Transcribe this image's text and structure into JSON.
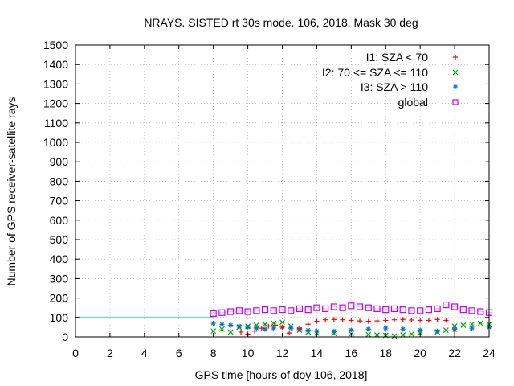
{
  "chart_data": {
    "type": "scatter",
    "title": "NRAYS. SISTED rt 30s mode. 106, 2018. Mask 30 deg",
    "xlabel": "GPS time [hours of doy 106, 2018]",
    "ylabel": "Number of GPS receiver-satellite rays",
    "xlim": [
      0,
      24
    ],
    "ylim": [
      0,
      1500
    ],
    "x_ticks": [
      0,
      2,
      4,
      6,
      8,
      10,
      12,
      14,
      16,
      18,
      20,
      22,
      24
    ],
    "y_ticks": [
      0,
      100,
      200,
      300,
      400,
      500,
      600,
      700,
      800,
      900,
      1000,
      1100,
      1200,
      1300,
      1400,
      1500
    ],
    "grid": true,
    "legend_position": "top-right",
    "reference_line": {
      "y": 100,
      "x_range": [
        0,
        8
      ],
      "color": "#00e0e0"
    },
    "series": [
      {
        "name": "I1: SZA < 70",
        "marker": "+",
        "color": "#ff0000",
        "x": [
          9.6,
          10.0,
          10.4,
          10.8,
          11.2,
          11.6,
          12.0,
          12.4,
          13.0,
          13.5,
          14.0,
          14.5,
          15.0,
          15.5,
          16.0,
          16.5,
          17.0,
          17.5,
          18.0,
          18.5,
          19.0,
          19.5,
          20.0,
          20.5,
          21.0,
          21.5,
          22.0
        ],
        "y": [
          25,
          15,
          30,
          45,
          55,
          60,
          50,
          20,
          45,
          65,
          80,
          88,
          90,
          88,
          85,
          82,
          80,
          82,
          85,
          88,
          90,
          87,
          85,
          85,
          90,
          85,
          30
        ]
      },
      {
        "name": "I2: 70 <= SZA <= 110",
        "marker": "x",
        "color": "#00a000",
        "x": [
          8.0,
          8.5,
          9.0,
          9.5,
          10.0,
          10.5,
          11.0,
          11.5,
          12.0,
          12.5,
          13.0,
          13.5,
          14.0,
          15.0,
          16.0,
          17.0,
          17.5,
          18.0,
          18.5,
          19.0,
          19.5,
          20.0,
          21.0,
          21.5,
          22.0,
          22.5,
          23.0,
          23.5,
          24.0
        ],
        "y": [
          30,
          40,
          25,
          50,
          55,
          60,
          65,
          70,
          75,
          55,
          35,
          25,
          20,
          18,
          15,
          12,
          10,
          8,
          5,
          10,
          15,
          20,
          25,
          35,
          55,
          60,
          65,
          70,
          65
        ]
      },
      {
        "name": "I3: SZA > 110",
        "marker": "*",
        "color": "#0070d0",
        "x": [
          8.0,
          8.5,
          9.0,
          9.5,
          10.0,
          10.5,
          11.0,
          11.5,
          12.0,
          12.5,
          13.0,
          13.5,
          14.0,
          15.0,
          16.0,
          17.0,
          18.0,
          19.0,
          20.0,
          21.0,
          22.0,
          23.0,
          24.0
        ],
        "y": [
          70,
          65,
          60,
          55,
          50,
          45,
          40,
          45,
          50,
          45,
          40,
          35,
          30,
          30,
          35,
          40,
          45,
          40,
          35,
          30,
          40,
          45,
          50
        ]
      },
      {
        "name": "global",
        "marker": "square",
        "color": "#c000ff",
        "x": [
          8.0,
          8.5,
          9.0,
          9.5,
          10.0,
          10.5,
          11.0,
          11.5,
          12.0,
          12.5,
          13.0,
          13.5,
          14.0,
          14.5,
          15.0,
          15.5,
          16.0,
          16.5,
          17.0,
          17.5,
          18.0,
          18.5,
          19.0,
          19.5,
          20.0,
          20.5,
          21.0,
          21.5,
          22.0,
          22.5,
          23.0,
          23.5,
          24.0
        ],
        "y": [
          120,
          125,
          130,
          135,
          130,
          135,
          140,
          135,
          140,
          135,
          145,
          140,
          150,
          145,
          155,
          150,
          160,
          155,
          150,
          145,
          140,
          145,
          140,
          135,
          135,
          140,
          145,
          165,
          155,
          140,
          135,
          130,
          125
        ]
      }
    ]
  }
}
